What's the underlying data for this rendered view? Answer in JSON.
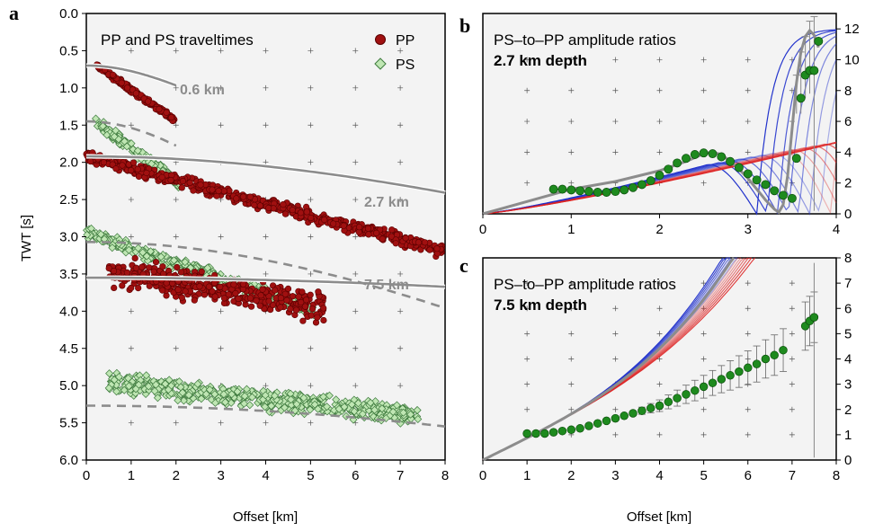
{
  "colors": {
    "panel_bg": "#f3f3f3",
    "pp": "#a01010",
    "pp_edge": "#5a0000",
    "ps": "#bfe6b3",
    "ps_edge": "#3d7a3d",
    "model": "#8c8c8c",
    "green_dot": "#1e8a1e",
    "blue": "#2233cc",
    "red": "#dd2222"
  },
  "chart_data": [
    {
      "panel": "a",
      "type": "scatter",
      "title": "PP and PS traveltimes",
      "xlabel": "Offset [km]",
      "ylabel": "TWT [s]",
      "xlim": [
        0,
        8
      ],
      "ylim": [
        6.0,
        0.0
      ],
      "y_inverted": true,
      "grid": "plus-markers",
      "x_ticks": [
        "0",
        "1",
        "2",
        "3",
        "4",
        "5",
        "6",
        "7",
        "8"
      ],
      "y_ticks": [
        "0.0",
        "0.5",
        "1.0",
        "1.5",
        "2.0",
        "2.5",
        "3.0",
        "3.5",
        "4.0",
        "4.5",
        "5.0",
        "5.5",
        "6.0"
      ],
      "legend": {
        "position": "top-right",
        "entries": [
          {
            "label": "PP",
            "marker": "filled-circle"
          },
          {
            "label": "PS",
            "marker": "open-diamond"
          }
        ]
      },
      "pp_bands": [
        {
          "x_start": 0.2,
          "x_end": 2.0,
          "y_at_start": 0.68,
          "y_at_end": 1.45,
          "spread": 0.06
        },
        {
          "x_start": 0.0,
          "x_end": 8.0,
          "y_at_start": 1.92,
          "y_at_end": 3.2,
          "spread": 0.12
        },
        {
          "x_start": 0.5,
          "x_end": 5.3,
          "y_at_start": 3.45,
          "y_at_end": 3.95,
          "spread": 0.28
        }
      ],
      "ps_bands": [
        {
          "x_start": 0.2,
          "x_end": 2.1,
          "y_at_start": 1.45,
          "y_at_end": 2.3,
          "spread": 0.1
        },
        {
          "x_start": 0.0,
          "x_end": 5.1,
          "y_at_start": 2.95,
          "y_at_end": 4.0,
          "spread": 0.12
        },
        {
          "x_start": 0.5,
          "x_end": 7.4,
          "y_at_start": 4.95,
          "y_at_end": 5.4,
          "spread": 0.2
        }
      ],
      "pp_models": [
        {
          "label": "0.6 km",
          "t0": 0.7,
          "v": 3.0,
          "x_max": 2.0
        },
        {
          "label": "2.7 km",
          "t0": 1.92,
          "v": 5.5,
          "x_max": 8.0
        },
        {
          "label": "7.5 km",
          "t0": 3.55,
          "v": 8.5,
          "x_max": 8.0
        }
      ],
      "ps_models": [
        {
          "t0": 1.45,
          "v": 1.95,
          "x_max": 2.0
        },
        {
          "t0": 3.07,
          "v": 3.2,
          "x_max": 8.0
        },
        {
          "t0": 5.27,
          "v": 4.6,
          "x_max": 8.0
        }
      ]
    },
    {
      "panel": "b",
      "type": "line",
      "title": "PS–to–PP amplitude ratios",
      "subtitle": "2.7 km depth",
      "xlabel": "",
      "ylabel": "",
      "xlim": [
        0,
        4
      ],
      "ylim": [
        0,
        13
      ],
      "x_ticks": [
        "0",
        "1",
        "2",
        "3",
        "4"
      ],
      "y_ticks": [
        "0",
        "2",
        "4",
        "6",
        "8",
        "10",
        "12"
      ],
      "observed": {
        "x": [
          0.8,
          0.9,
          1.0,
          1.1,
          1.2,
          1.3,
          1.4,
          1.5,
          1.6,
          1.7,
          1.8,
          1.9,
          2.0,
          2.1,
          2.2,
          2.3,
          2.4,
          2.5,
          2.6,
          2.7,
          2.8,
          2.9,
          3.0,
          3.1,
          3.2,
          3.3,
          3.4,
          3.5,
          3.55,
          3.6,
          3.65,
          3.7,
          3.75,
          3.8
        ],
        "y": [
          1.6,
          1.6,
          1.55,
          1.5,
          1.45,
          1.4,
          1.4,
          1.45,
          1.55,
          1.7,
          1.9,
          2.15,
          2.5,
          2.9,
          3.3,
          3.6,
          3.85,
          3.95,
          3.9,
          3.7,
          3.4,
          3.0,
          2.6,
          2.2,
          1.9,
          1.5,
          1.2,
          1.0,
          3.6,
          7.5,
          9.0,
          9.3,
          9.3,
          11.2
        ]
      },
      "best_fit": {
        "x": [
          0.0,
          0.5,
          1.0,
          1.5,
          2.0,
          2.3,
          2.5,
          2.6,
          2.7,
          2.8,
          2.9,
          3.0,
          3.1,
          3.2,
          3.3,
          3.35,
          3.4,
          3.45,
          3.5,
          3.55,
          3.6,
          3.65,
          3.7,
          3.75,
          3.8
        ],
        "y": [
          0.0,
          0.8,
          1.6,
          2.1,
          2.8,
          3.4,
          3.9,
          4.0,
          3.85,
          3.4,
          2.9,
          2.3,
          1.6,
          0.9,
          0.3,
          0.1,
          0.6,
          2.5,
          5.5,
          8.5,
          10.5,
          11.5,
          11.9,
          11.6,
          10.8
        ]
      },
      "model_family": {
        "blue_count": 7,
        "red_count": 7,
        "peak_start_x": 2.55,
        "peak_step_x": 0.12
      }
    },
    {
      "panel": "c",
      "type": "line",
      "title": "PS–to–PP amplitude ratios",
      "subtitle": "7.5 km depth",
      "xlabel": "Offset [km]",
      "ylabel": "",
      "xlim": [
        0,
        8
      ],
      "ylim": [
        0,
        8
      ],
      "x_ticks": [
        "0",
        "1",
        "2",
        "3",
        "4",
        "5",
        "6",
        "7",
        "8"
      ],
      "y_ticks": [
        "0",
        "1",
        "2",
        "3",
        "4",
        "5",
        "6",
        "7",
        "8"
      ],
      "observed": {
        "x": [
          1.0,
          1.2,
          1.4,
          1.6,
          1.8,
          2.0,
          2.2,
          2.4,
          2.6,
          2.8,
          3.0,
          3.2,
          3.4,
          3.6,
          3.8,
          4.0,
          4.2,
          4.4,
          4.6,
          4.8,
          5.0,
          5.2,
          5.4,
          5.6,
          5.8,
          6.0,
          6.2,
          6.4,
          6.6,
          6.8,
          7.3,
          7.4,
          7.5
        ],
        "y": [
          1.05,
          1.05,
          1.05,
          1.1,
          1.15,
          1.2,
          1.25,
          1.35,
          1.45,
          1.55,
          1.65,
          1.75,
          1.85,
          1.95,
          2.05,
          2.15,
          2.3,
          2.45,
          2.6,
          2.75,
          2.9,
          3.05,
          3.2,
          3.35,
          3.5,
          3.65,
          3.8,
          4.0,
          4.15,
          4.35,
          5.3,
          5.5,
          5.65
        ]
      },
      "best_fit": {
        "a": 0.95,
        "b": 0.0085,
        "p": 3.4
      }
    }
  ],
  "labels": {
    "panel_a_letter": "a",
    "panel_b_letter": "b",
    "panel_c_letter": "c",
    "legend_pp": "PP",
    "legend_ps": "PS",
    "depth_06": "0.6 km",
    "depth_27": "2.7 km",
    "depth_75": "7.5 km"
  }
}
